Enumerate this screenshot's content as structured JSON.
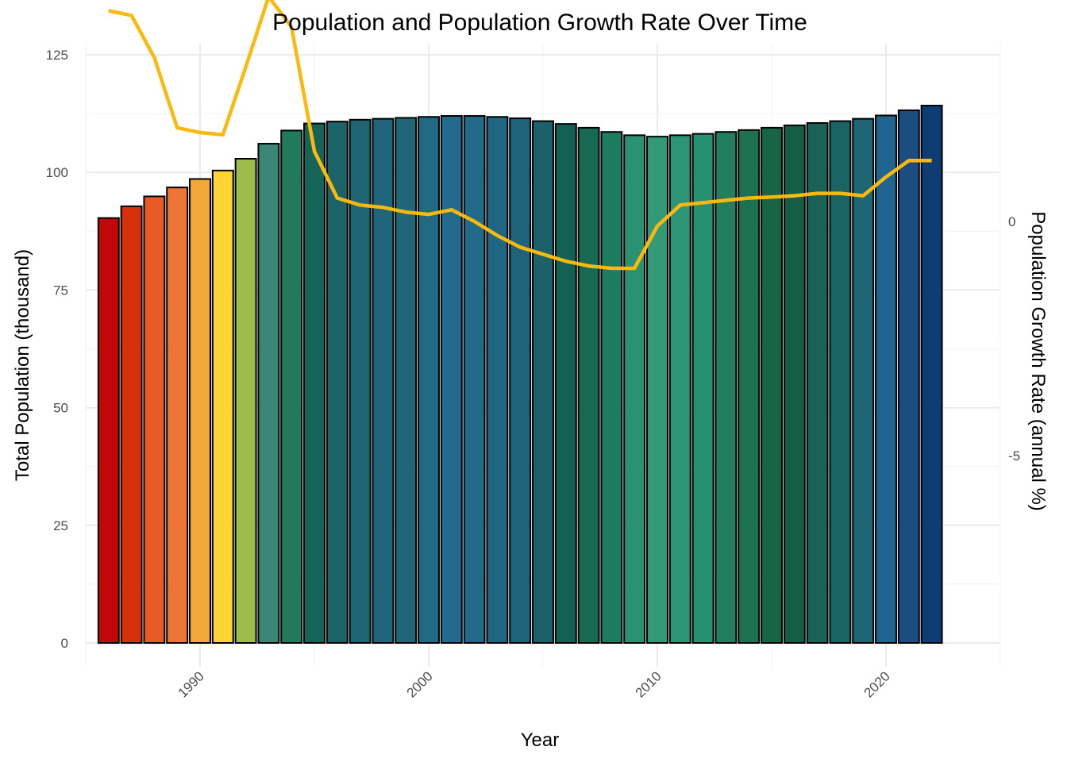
{
  "chart_data": {
    "type": "bar",
    "title": "Population and Population Growth Rate Over Time",
    "xlabel": "Year",
    "ylabel": "Total Population (thousand)",
    "y2label": "Population Growth Rate (annual %)",
    "xlim": [
      1985,
      2025
    ],
    "ylim": [
      0,
      125
    ],
    "y2lim": [
      -10,
      7.5
    ],
    "grid": true,
    "x_ticks": [
      1990,
      2000,
      2010,
      2020
    ],
    "y_ticks": [
      0,
      25,
      50,
      75,
      100,
      125
    ],
    "y2_ticks": [
      -5,
      0
    ],
    "x_tick_labels": [
      "1990",
      "2000",
      "2010",
      "2020"
    ],
    "y_tick_labels": [
      "0",
      "25",
      "50",
      "75",
      "100",
      "125"
    ],
    "y2_tick_labels": [
      "-5",
      "0"
    ],
    "categories": [
      1986,
      1987,
      1988,
      1989,
      1990,
      1991,
      1992,
      1993,
      1994,
      1995,
      1996,
      1997,
      1998,
      1999,
      2000,
      2001,
      2002,
      2003,
      2004,
      2005,
      2006,
      2007,
      2008,
      2009,
      2010,
      2011,
      2012,
      2013,
      2014,
      2015,
      2016,
      2017,
      2018,
      2019,
      2020,
      2021,
      2022
    ],
    "series": [
      {
        "type": "bar",
        "values": [
          90.3,
          92.8,
          94.9,
          96.8,
          98.6,
          100.4,
          102.9,
          106.1,
          108.9,
          110.4,
          110.8,
          111.2,
          111.4,
          111.6,
          111.8,
          112.0,
          112.0,
          111.8,
          111.5,
          110.9,
          110.3,
          109.5,
          108.6,
          107.9,
          107.6,
          107.9,
          108.2,
          108.6,
          109.0,
          109.5,
          110.0,
          110.5,
          110.9,
          111.4,
          112.1,
          113.2,
          114.2
        ],
        "colors": [
          "#c2070b",
          "#d7300b",
          "#e95a25",
          "#ee7536",
          "#f2a93a",
          "#fcd434",
          "#9cbc4c",
          "#3b8674",
          "#1f7b5c",
          "#166457",
          "#1c6367",
          "#1f6474",
          "#206579",
          "#1f6778",
          "#206a84",
          "#226a8e",
          "#216a8a",
          "#206682",
          "#1e6379",
          "#1c6169",
          "#146055",
          "#166953",
          "#1e7c5e",
          "#2a9173",
          "#339a78",
          "#2d9575",
          "#279071",
          "#237e60",
          "#1b7150",
          "#166645",
          "#135e47",
          "#1a6257",
          "#1b6466",
          "#1e6674",
          "#1f6590",
          "#1d4d80",
          "#0f3c72"
        ]
      },
      {
        "type": "line",
        "values": [
          4.5,
          4.4,
          3.5,
          2.0,
          1.9,
          1.85,
          3.3,
          4.8,
          4.15,
          1.5,
          0.5,
          0.35,
          0.3,
          0.2,
          0.15,
          0.25,
          0.0,
          -0.3,
          -0.55,
          -0.7,
          -0.85,
          -0.95,
          -1.0,
          -1.0,
          -0.1,
          0.35,
          0.4,
          0.45,
          0.5,
          0.52,
          0.55,
          0.6,
          0.6,
          0.55,
          0.95,
          1.3,
          1.3
        ],
        "color": "#fbb80f"
      }
    ]
  }
}
